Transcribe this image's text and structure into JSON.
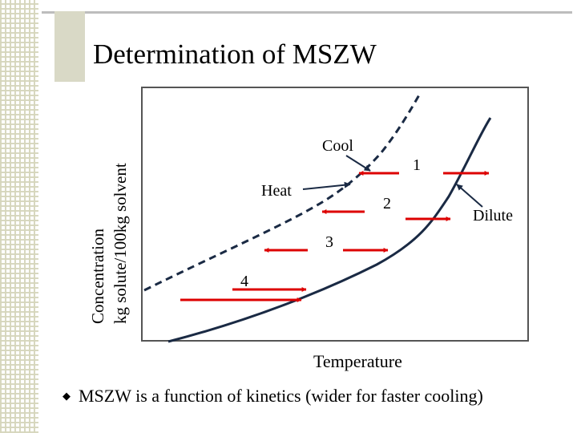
{
  "slide": {
    "title": "Determination of MSZW",
    "bullet_text": "MSZW is a function of kinetics (wider for faster cooling)",
    "bullet_icon": "diamond-bullet-icon"
  },
  "diagram": {
    "y_axis_label_line1": "Concentration",
    "y_axis_label_line2": "kg solute/100kg solvent",
    "x_axis_label": "Temperature",
    "curves": [
      {
        "name": "solubility curve",
        "style": "solid"
      },
      {
        "name": "metastable limit",
        "style": "dashed"
      }
    ],
    "labels": {
      "cool": "Cool",
      "heat": "Heat",
      "dilute": "Dilute"
    },
    "paths": [
      {
        "number": "1",
        "direction": "left"
      },
      {
        "number": "2",
        "direction": "left"
      },
      {
        "number": "3",
        "direction": "left"
      },
      {
        "number": "4",
        "direction": "right"
      }
    ]
  },
  "colors": {
    "arrow": "#dd0000",
    "curve": "#1a2a44",
    "frame": "#555555",
    "title_bar": "#d9d9c6",
    "pattern": "#d6d6bc"
  }
}
